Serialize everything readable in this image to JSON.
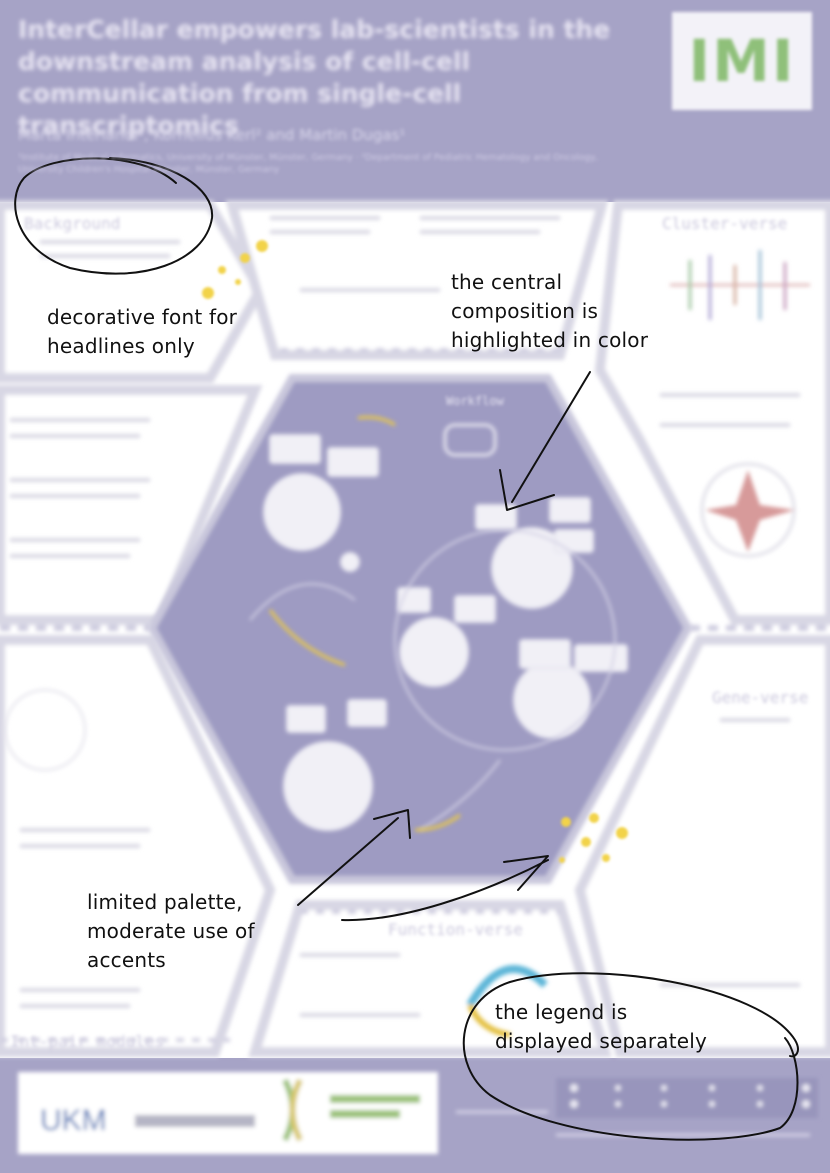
{
  "poster": {
    "title": "InterCellar empowers lab-scientists in the downstream analysis of cell-cell communication from single-cell transcriptomics",
    "authors": "Marta Interlandi¹, Kornelius Kerl² and Martin Dugas¹",
    "affiliations": "¹Institute of Medical Informatics, University of Münster, Münster, Germany · ²Department of Pediatric Hematology and Oncology, University Children's Hospital Münster, Münster, Germany",
    "logo_text": "IMI",
    "panels": {
      "background": "Background",
      "cluster_verse": "Cluster-verse",
      "gene_verse": "Gene-verse",
      "function_verse": "Function-verse",
      "int_pair_modules": "Int-pair modules",
      "workflow": "Workflow"
    },
    "sponsors": {
      "ukm": "UKM",
      "med_fak": "medizinische fakultät"
    }
  },
  "annotations": {
    "headline_font": [
      "decorative font for",
      "headlines only"
    ],
    "central": [
      "the central",
      "composition is",
      "highlighted in color"
    ],
    "palette": [
      "limited palette,",
      "moderate use of",
      "accents"
    ],
    "legend": [
      "the legend is",
      "displayed separately"
    ]
  },
  "colors": {
    "header_bg": "#a6a3c6",
    "hex_fill": "#9e9bc2",
    "accent_yellow": "#f2d34a",
    "background": "#ffffff",
    "ink": "#111111"
  }
}
